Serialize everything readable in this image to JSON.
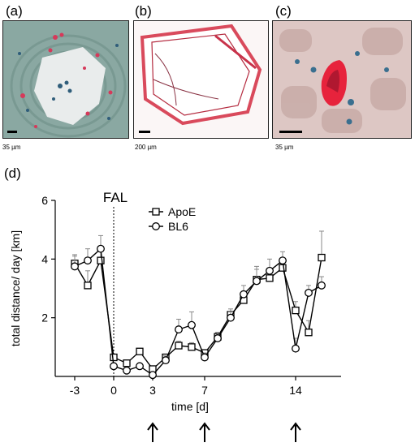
{
  "panels": {
    "a": {
      "label": "(a)",
      "scale": "35 µm"
    },
    "b": {
      "label": "(b)",
      "scale": "200 µm"
    },
    "c": {
      "label": "(c)",
      "scale": "35 µm"
    },
    "d": {
      "label": "(d)"
    }
  },
  "chart_data": {
    "type": "line",
    "title": "",
    "xlabel": "time [d]",
    "ylabel": "total distance/ day  [km]",
    "xlim": [
      -4.5,
      17.5
    ],
    "ylim": [
      0,
      6
    ],
    "xticks": [
      -3,
      0,
      3,
      7,
      14
    ],
    "xtick_labels": [
      "-3",
      "0",
      "3",
      "7",
      "14"
    ],
    "yticks": [
      2,
      4,
      6
    ],
    "ytick_labels": [
      "2",
      "4",
      "6"
    ],
    "grid": false,
    "legend_position": "top",
    "annotation": {
      "text": "FAL",
      "x": 0
    },
    "arrows_at": [
      3,
      7,
      14
    ],
    "series": [
      {
        "name": "ApoE",
        "marker": "square",
        "x": [
          -3,
          -2,
          -1,
          0,
          1,
          2,
          3,
          4,
          5,
          6,
          7,
          8,
          9,
          10,
          11,
          12,
          13,
          14,
          15,
          16
        ],
        "y": [
          3.85,
          3.1,
          3.95,
          0.65,
          0.45,
          0.85,
          0.25,
          0.65,
          1.05,
          1.0,
          0.8,
          1.35,
          2.1,
          2.6,
          3.3,
          3.35,
          3.7,
          2.25,
          1.5,
          4.05
        ],
        "err": [
          0.3,
          0.5,
          0.35,
          0.1,
          0.1,
          0.1,
          0.1,
          0.1,
          0.15,
          0.15,
          0.1,
          0.15,
          0.2,
          0.3,
          0.35,
          0.3,
          0.3,
          0.3,
          0.4,
          0.9
        ]
      },
      {
        "name": "BL6",
        "marker": "circle",
        "x": [
          -3,
          -2,
          -1,
          0,
          1,
          2,
          3,
          4,
          5,
          6,
          7,
          8,
          9,
          10,
          11,
          12,
          13,
          14,
          15,
          16
        ],
        "y": [
          3.75,
          3.95,
          4.35,
          0.35,
          0.2,
          0.35,
          0.05,
          0.55,
          1.6,
          1.75,
          0.65,
          1.3,
          2.0,
          2.8,
          3.25,
          3.6,
          3.95,
          0.95,
          2.85,
          3.1
        ],
        "err": [
          0.35,
          0.4,
          0.45,
          0.1,
          0.05,
          0.1,
          0.05,
          0.15,
          0.35,
          0.45,
          0.15,
          0.2,
          0.2,
          0.3,
          0.5,
          0.4,
          0.3,
          0.35,
          0.25,
          0.3
        ]
      }
    ]
  }
}
